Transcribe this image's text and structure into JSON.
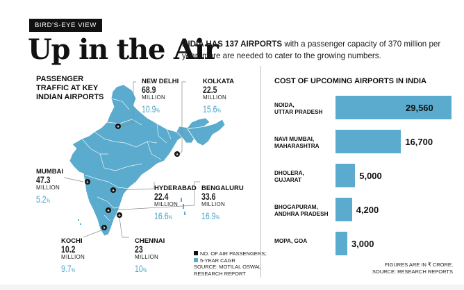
{
  "kicker": "BIRD'S-EYE VIEW",
  "headline": "Up in the Air",
  "deck": {
    "lead": "INDIA HAS 137 AIRPORTS",
    "text": " with a passenger capacity of 370 million per year; more are needed to cater to the growing numbers."
  },
  "map": {
    "title": "PASSENGER TRAFFIC AT KEY INDIAN AIRPORTS",
    "fill_color": "#5aabcd",
    "airports": [
      {
        "city": "NEW DELHI",
        "passengers": "68.9",
        "unit": "MILLION",
        "cagr": "10.9",
        "pct": "%"
      },
      {
        "city": "KOLKATA",
        "passengers": "22.5",
        "unit": "MILLION",
        "cagr": "15.6",
        "pct": "%"
      },
      {
        "city": "MUMBAI",
        "passengers": "47.3",
        "unit": "MILLION",
        "cagr": "5.2",
        "pct": "%"
      },
      {
        "city": "HYDERABAD",
        "passengers": "22.4",
        "unit": "MILLION",
        "cagr": "16.6",
        "pct": "%"
      },
      {
        "city": "BENGALURU",
        "passengers": "33.6",
        "unit": "MILLION",
        "cagr": "16.9",
        "pct": "%"
      },
      {
        "city": "KOCHI",
        "passengers": "10.2",
        "unit": "MILLION",
        "cagr": "9.7",
        "pct": "%"
      },
      {
        "city": "CHENNAI",
        "passengers": "23",
        "unit": "MILLION",
        "cagr": "10",
        "pct": "%"
      }
    ],
    "legend": {
      "passengers": "NO. OF AIR PASSENGERS;",
      "cagr": "5-YEAR CAGR",
      "source_1": "SOURCE: MOTILAL OSWAL",
      "source_2": "RESEARCH REPORT"
    }
  },
  "chart_data": {
    "type": "bar",
    "orientation": "horizontal",
    "title": "COST OF UPCOMING AIRPORTS IN INDIA",
    "categories": [
      [
        "NOIDA,",
        "UTTAR PRADESH"
      ],
      [
        "NAVI MUMBAI,",
        "MAHARASHTRA"
      ],
      [
        "DHOLERA,",
        "GUJARAT"
      ],
      [
        "BHOGAPURAM,",
        "ANDHRA PRADESH"
      ],
      [
        "MOPA, GOA",
        ""
      ]
    ],
    "values": [
      29560,
      16700,
      5000,
      4200,
      3000
    ],
    "value_labels": [
      "29,560",
      "16,700",
      "5,000",
      "4,200",
      "3,000"
    ],
    "bar_color": "#5aabcd",
    "note_1": "FIGURES ARE IN ₹ CRORE;",
    "note_2": "SOURCE: RESEARCH REPORTS"
  }
}
